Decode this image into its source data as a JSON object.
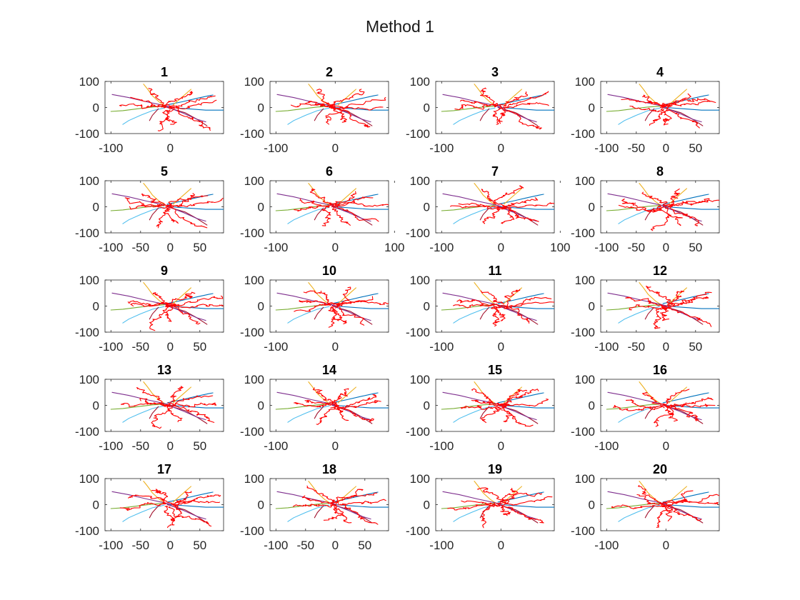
{
  "figure": {
    "title": "Method 1"
  },
  "chart_data": {
    "type": "line",
    "title": "Method 1",
    "grid": false,
    "layout": {
      "rows": 5,
      "cols": 4
    },
    "colors": {
      "blue": "#0072bd",
      "orange": "#edb120",
      "purple": "#7e2f8e",
      "green": "#77ac30",
      "cyan": "#4dbeee",
      "darkred": "#a2142f",
      "red": "#ff0000"
    },
    "reference_curves": [
      {
        "color": "blue",
        "points": [
          [
            -5,
            10
          ],
          [
            20,
            22
          ],
          [
            45,
            35
          ],
          [
            65,
            45
          ],
          [
            72,
            48
          ]
        ]
      },
      {
        "color": "orange",
        "points": [
          [
            -45,
            90
          ],
          [
            -38,
            70
          ],
          [
            -30,
            45
          ],
          [
            -18,
            20
          ],
          [
            -8,
            5
          ]
        ]
      },
      {
        "color": "purple",
        "points": [
          [
            -98,
            50
          ],
          [
            -70,
            38
          ],
          [
            -40,
            22
          ],
          [
            -15,
            10
          ],
          [
            0,
            2
          ]
        ]
      },
      {
        "color": "green",
        "points": [
          [
            -100,
            -15
          ],
          [
            -80,
            -12
          ],
          [
            -55,
            -5
          ],
          [
            -30,
            2
          ],
          [
            -10,
            5
          ]
        ]
      },
      {
        "color": "cyan",
        "points": [
          [
            -80,
            -65
          ],
          [
            -70,
            -50
          ],
          [
            -50,
            -30
          ],
          [
            -30,
            -12
          ],
          [
            -10,
            -2
          ]
        ]
      },
      {
        "color": "blue",
        "points": [
          [
            0,
            0
          ],
          [
            30,
            -5
          ],
          [
            60,
            -10
          ],
          [
            90,
            -10
          ]
        ]
      },
      {
        "color": "darkred",
        "points": [
          [
            -5,
            0
          ],
          [
            25,
            -20
          ],
          [
            45,
            -45
          ],
          [
            62,
            -70
          ]
        ]
      },
      {
        "color": "purple",
        "points": [
          [
            -5,
            2
          ],
          [
            20,
            -20
          ],
          [
            45,
            -45
          ],
          [
            60,
            -55
          ]
        ]
      },
      {
        "color": "darkred",
        "points": [
          [
            -20,
            -5
          ],
          [
            -30,
            -30
          ],
          [
            -35,
            -50
          ]
        ]
      },
      {
        "color": "orange",
        "points": [
          [
            5,
            10
          ],
          [
            20,
            40
          ],
          [
            35,
            70
          ]
        ]
      }
    ],
    "trials": [
      {
        "id": "1",
        "xlim": [
          -110,
          90
        ],
        "ylim": [
          -100,
          100
        ],
        "xticks": [
          -100,
          0
        ]
      },
      {
        "id": "2",
        "xlim": [
          -110,
          90
        ],
        "ylim": [
          -100,
          100
        ],
        "xticks": [
          -100,
          0
        ]
      },
      {
        "id": "3",
        "xlim": [
          -110,
          90
        ],
        "ylim": [
          -100,
          100
        ],
        "xticks": [
          -100,
          0
        ]
      },
      {
        "id": "4",
        "xlim": [
          -110,
          90
        ],
        "ylim": [
          -100,
          100
        ],
        "xticks": [
          -100,
          -50,
          0,
          50
        ]
      },
      {
        "id": "5",
        "xlim": [
          -110,
          90
        ],
        "ylim": [
          -100,
          100
        ],
        "xticks": [
          -100,
          -50,
          0,
          50
        ]
      },
      {
        "id": "6",
        "xlim": [
          -110,
          90
        ],
        "ylim": [
          -100,
          100
        ],
        "xticks": [
          -100,
          0,
          100
        ]
      },
      {
        "id": "7",
        "xlim": [
          -110,
          90
        ],
        "ylim": [
          -100,
          100
        ],
        "xticks": [
          -100,
          0,
          100
        ]
      },
      {
        "id": "8",
        "xlim": [
          -110,
          90
        ],
        "ylim": [
          -100,
          100
        ],
        "xticks": [
          -100,
          -50,
          0,
          50
        ]
      },
      {
        "id": "9",
        "xlim": [
          -110,
          90
        ],
        "ylim": [
          -100,
          100
        ],
        "xticks": [
          -100,
          -50,
          0,
          50
        ]
      },
      {
        "id": "10",
        "xlim": [
          -110,
          90
        ],
        "ylim": [
          -100,
          100
        ],
        "xticks": [
          -100,
          0
        ]
      },
      {
        "id": "11",
        "xlim": [
          -110,
          90
        ],
        "ylim": [
          -100,
          100
        ],
        "xticks": [
          -100,
          0
        ]
      },
      {
        "id": "12",
        "xlim": [
          -110,
          90
        ],
        "ylim": [
          -100,
          100
        ],
        "xticks": [
          -100,
          -50,
          0,
          50
        ]
      },
      {
        "id": "13",
        "xlim": [
          -110,
          90
        ],
        "ylim": [
          -100,
          100
        ],
        "xticks": [
          -100,
          -50,
          0,
          50
        ]
      },
      {
        "id": "14",
        "xlim": [
          -110,
          90
        ],
        "ylim": [
          -100,
          100
        ],
        "xticks": [
          -100,
          0
        ]
      },
      {
        "id": "15",
        "xlim": [
          -110,
          90
        ],
        "ylim": [
          -100,
          100
        ],
        "xticks": [
          -100,
          0
        ]
      },
      {
        "id": "16",
        "xlim": [
          -110,
          90
        ],
        "ylim": [
          -100,
          100
        ],
        "xticks": [
          -100,
          0
        ]
      },
      {
        "id": "17",
        "xlim": [
          -110,
          90
        ],
        "ylim": [
          -100,
          100
        ],
        "xticks": [
          -100,
          -50,
          0,
          50
        ]
      },
      {
        "id": "18",
        "xlim": [
          -110,
          90
        ],
        "ylim": [
          -100,
          100
        ],
        "xticks": [
          -100,
          -50,
          0,
          50
        ]
      },
      {
        "id": "19",
        "xlim": [
          -110,
          90
        ],
        "ylim": [
          -100,
          100
        ],
        "xticks": [
          -100,
          0
        ]
      },
      {
        "id": "20",
        "xlim": [
          -110,
          90
        ],
        "ylim": [
          -100,
          100
        ],
        "xticks": [
          -100,
          0
        ]
      }
    ],
    "yticks": [
      -100,
      0,
      100
    ],
    "noisy_paths_per_trial": 9
  }
}
